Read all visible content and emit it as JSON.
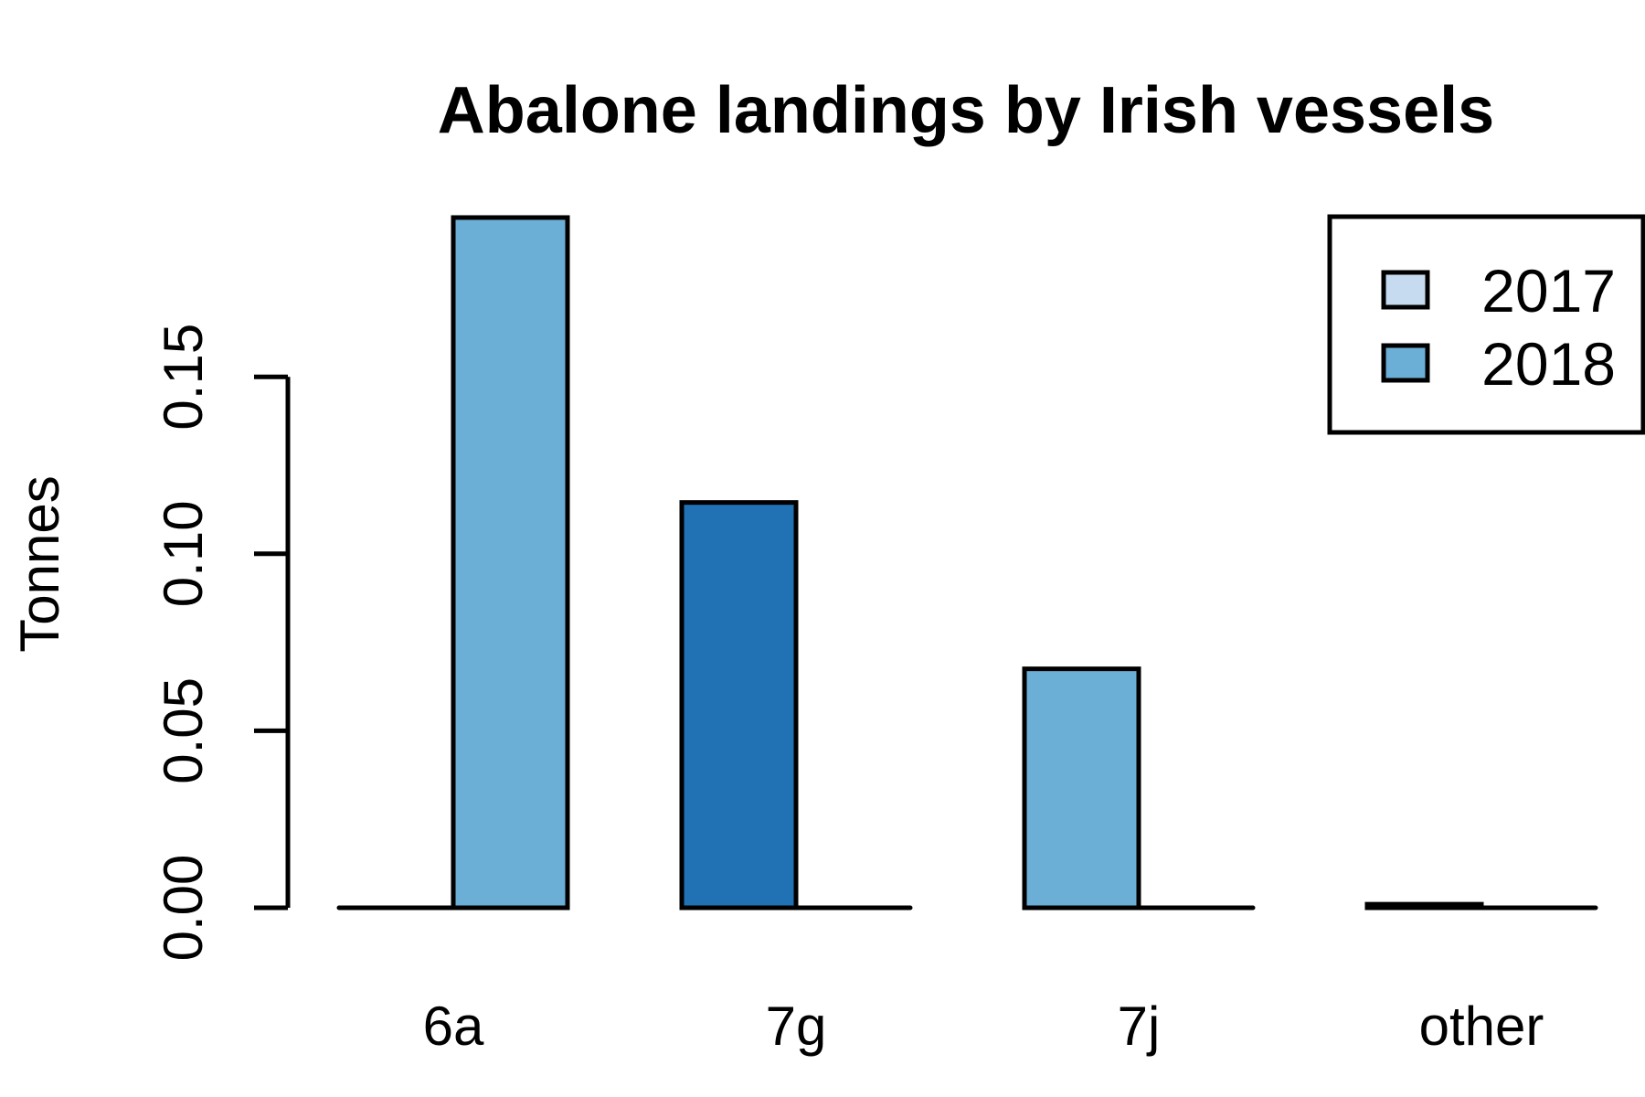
{
  "chart_data": {
    "type": "bar",
    "title": "Abalone landings by Irish vessels",
    "xlabel": "",
    "ylabel": "Tonnes",
    "categories": [
      "6a",
      "7g",
      "7j",
      "other"
    ],
    "bars": [
      {
        "category": "6a",
        "series": "2017",
        "value": 0.0,
        "color": "#c6dbef"
      },
      {
        "category": "6a",
        "series": "2018",
        "value": 0.195,
        "color": "#6baed6"
      },
      {
        "category": "7g",
        "series": "2017",
        "value": 0.1145,
        "color": "#2171b5"
      },
      {
        "category": "7g",
        "series": "2018",
        "value": 0.0,
        "color": "#c6dbef"
      },
      {
        "category": "7j",
        "series": "2017",
        "value": 0.0675,
        "color": "#6baed6"
      },
      {
        "category": "7j",
        "series": "2018",
        "value": 0.0,
        "color": "#2171b5"
      },
      {
        "category": "other",
        "series": "2017",
        "value": 0.001,
        "color": "#c6dbef"
      },
      {
        "category": "other",
        "series": "2018",
        "value": 0.0,
        "color": "#6baed6"
      }
    ],
    "yticks": [
      "0.00",
      "0.05",
      "0.10",
      "0.15"
    ],
    "ylim": [
      0,
      0.2
    ],
    "grid": false,
    "legend": {
      "position": "top-right",
      "entries": [
        {
          "label": "2017",
          "color": "#c6dbef"
        },
        {
          "label": "2018",
          "color": "#6baed6"
        }
      ]
    }
  }
}
